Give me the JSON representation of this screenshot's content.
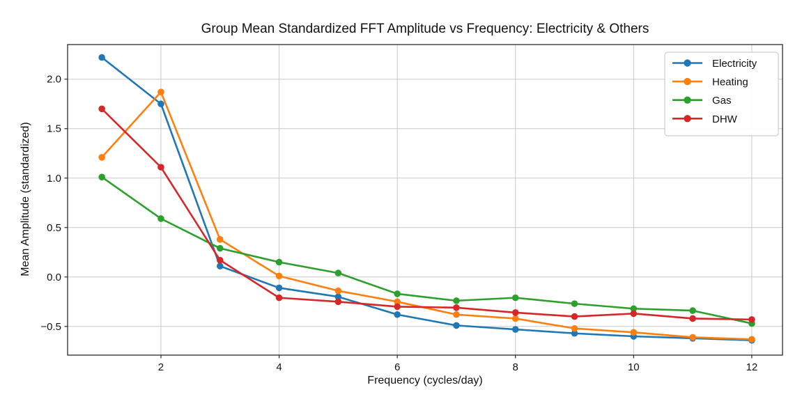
{
  "page": {
    "background_color": "#ffffff"
  },
  "chart_data": {
    "type": "line",
    "title": "Group Mean Standardized FFT Amplitude vs Frequency: Electricity & Others",
    "xlabel": "Frequency (cycles/day)",
    "ylabel": "Mean Amplitude (standardized)",
    "x": [
      1,
      2,
      3,
      4,
      5,
      6,
      7,
      8,
      9,
      10,
      11,
      12
    ],
    "series": [
      {
        "name": "Electricity",
        "color": "#1f77b4",
        "values": [
          2.22,
          1.75,
          0.11,
          -0.11,
          -0.2,
          -0.38,
          -0.49,
          -0.53,
          -0.57,
          -0.6,
          -0.62,
          -0.64
        ]
      },
      {
        "name": "Heating",
        "color": "#ff7f0e",
        "values": [
          1.21,
          1.87,
          0.38,
          0.01,
          -0.14,
          -0.25,
          -0.38,
          -0.42,
          -0.52,
          -0.56,
          -0.61,
          -0.63
        ]
      },
      {
        "name": "Gas",
        "color": "#2ca02c",
        "values": [
          1.01,
          0.59,
          0.29,
          0.15,
          0.04,
          -0.17,
          -0.24,
          -0.21,
          -0.27,
          -0.32,
          -0.34,
          -0.47
        ]
      },
      {
        "name": "DHW",
        "color": "#d62728",
        "values": [
          1.7,
          1.11,
          0.17,
          -0.21,
          -0.25,
          -0.3,
          -0.31,
          -0.36,
          -0.4,
          -0.37,
          -0.42,
          -0.43
        ]
      }
    ],
    "xticks": [
      2,
      4,
      6,
      8,
      10,
      12
    ],
    "yticks": [
      2.0,
      1.5,
      1.0,
      0.5,
      0.0,
      -0.5
    ],
    "xlim": [
      0.42,
      12.52
    ],
    "ylim": [
      -0.79,
      2.35
    ],
    "grid": true,
    "legend": {
      "position": "upper right",
      "entries": [
        "Electricity",
        "Heating",
        "Gas",
        "DHW"
      ]
    },
    "style": {
      "grid_color": "#c9c9c9",
      "axis_color": "#2a2a2a",
      "text_color": "#111111",
      "legend_border_color": "#cccccc",
      "legend_background": "#ffffff"
    }
  }
}
